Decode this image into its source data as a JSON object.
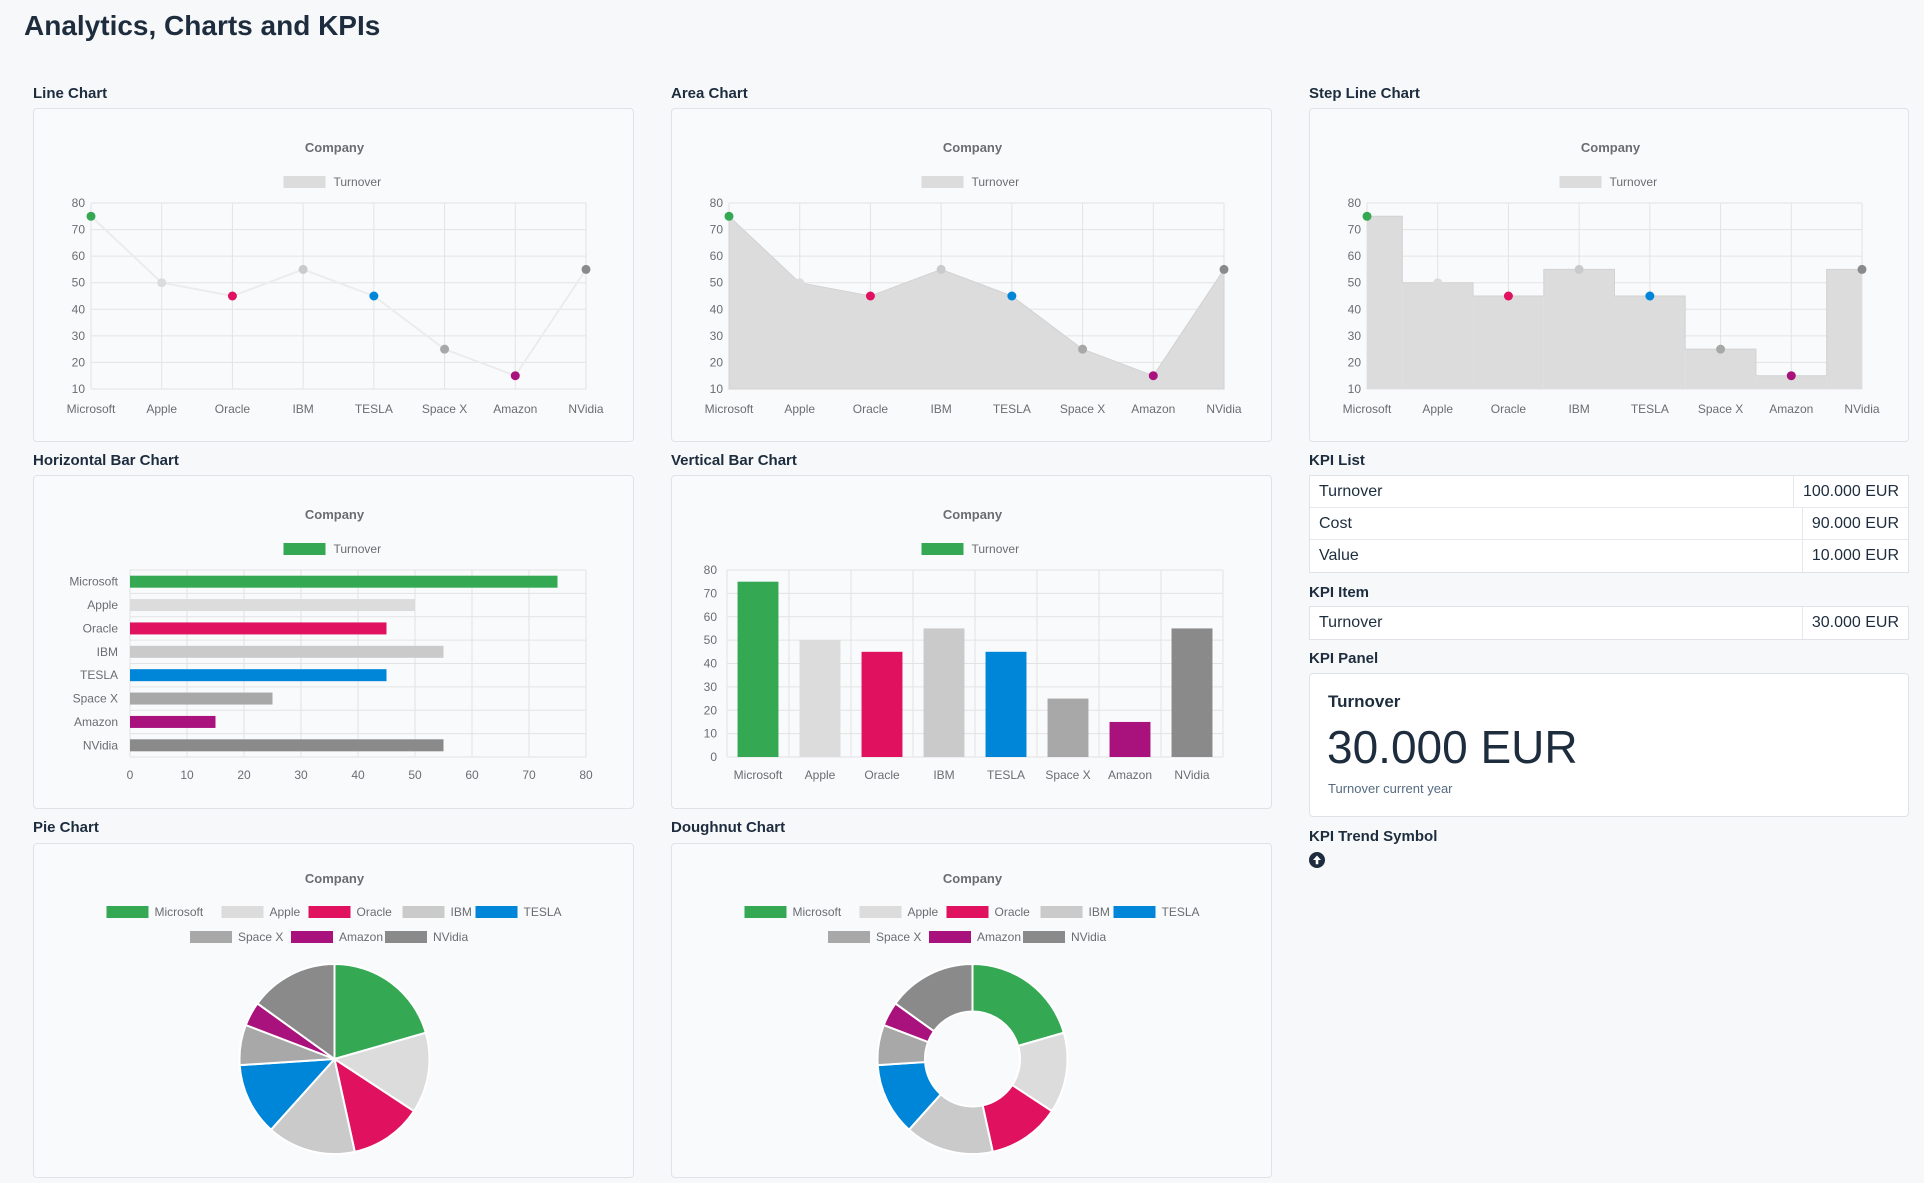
{
  "page": {
    "title": "Analytics, Charts and KPIs"
  },
  "sections": {
    "line": "Line Chart",
    "area": "Area Chart",
    "step": "Step Line Chart",
    "hbar": "Horizontal Bar Chart",
    "vbar": "Vertical Bar Chart",
    "kpi_list": "KPI List",
    "kpi_item": "KPI Item",
    "kpi_panel": "KPI Panel",
    "pie": "Pie Chart",
    "doughnut": "Doughnut Chart",
    "kpi_trend": "KPI Trend Symbol"
  },
  "chart_data": [
    {
      "id": "line",
      "type": "line",
      "title": "Company",
      "categories": [
        "Microsoft",
        "Apple",
        "Oracle",
        "IBM",
        "TESLA",
        "Space X",
        "Amazon",
        "NVidia"
      ],
      "series": [
        {
          "name": "Turnover",
          "values": [
            75,
            50,
            45,
            55,
            45,
            25,
            15,
            55
          ]
        }
      ],
      "ylim": [
        10,
        80
      ],
      "yticks": [
        10,
        20,
        30,
        40,
        50,
        60,
        70,
        80
      ],
      "legend": "top",
      "grid": true
    },
    {
      "id": "area",
      "type": "area",
      "title": "Company",
      "categories": [
        "Microsoft",
        "Apple",
        "Oracle",
        "IBM",
        "TESLA",
        "Space X",
        "Amazon",
        "NVidia"
      ],
      "series": [
        {
          "name": "Turnover",
          "values": [
            75,
            50,
            45,
            55,
            45,
            25,
            15,
            55
          ]
        }
      ],
      "ylim": [
        10,
        80
      ],
      "yticks": [
        10,
        20,
        30,
        40,
        50,
        60,
        70,
        80
      ],
      "legend": "top",
      "grid": true
    },
    {
      "id": "step",
      "type": "line",
      "subtype": "step",
      "title": "Company",
      "categories": [
        "Microsoft",
        "Apple",
        "Oracle",
        "IBM",
        "TESLA",
        "Space X",
        "Amazon",
        "NVidia"
      ],
      "series": [
        {
          "name": "Turnover",
          "values": [
            75,
            50,
            45,
            55,
            45,
            25,
            15,
            55
          ]
        }
      ],
      "ylim": [
        10,
        80
      ],
      "yticks": [
        10,
        20,
        30,
        40,
        50,
        60,
        70,
        80
      ],
      "legend": "top",
      "grid": true
    },
    {
      "id": "hbar",
      "type": "bar",
      "orientation": "horizontal",
      "title": "Company",
      "categories": [
        "Microsoft",
        "Apple",
        "Oracle",
        "IBM",
        "TESLA",
        "Space X",
        "Amazon",
        "NVidia"
      ],
      "series": [
        {
          "name": "Turnover",
          "values": [
            75,
            50,
            45,
            55,
            45,
            25,
            15,
            55
          ]
        }
      ],
      "xlim": [
        0,
        80
      ],
      "xticks": [
        0,
        10,
        20,
        30,
        40,
        50,
        60,
        70,
        80
      ],
      "legend": "top",
      "grid": true
    },
    {
      "id": "vbar",
      "type": "bar",
      "orientation": "vertical",
      "title": "Company",
      "categories": [
        "Microsoft",
        "Apple",
        "Oracle",
        "IBM",
        "TESLA",
        "Space X",
        "Amazon",
        "NVidia"
      ],
      "series": [
        {
          "name": "Turnover",
          "values": [
            75,
            50,
            45,
            55,
            45,
            25,
            15,
            55
          ]
        }
      ],
      "ylim": [
        0,
        80
      ],
      "yticks": [
        0,
        10,
        20,
        30,
        40,
        50,
        60,
        70,
        80
      ],
      "legend": "top",
      "grid": true
    },
    {
      "id": "pie",
      "type": "pie",
      "title": "Company",
      "categories": [
        "Microsoft",
        "Apple",
        "Oracle",
        "IBM",
        "TESLA",
        "Space X",
        "Amazon",
        "NVidia"
      ],
      "values": [
        75,
        50,
        45,
        55,
        45,
        25,
        15,
        55
      ],
      "legend": "top"
    },
    {
      "id": "doughnut",
      "type": "pie",
      "subtype": "doughnut",
      "title": "Company",
      "categories": [
        "Microsoft",
        "Apple",
        "Oracle",
        "IBM",
        "TESLA",
        "Space X",
        "Amazon",
        "NVidia"
      ],
      "values": [
        75,
        50,
        45,
        55,
        45,
        25,
        15,
        55
      ],
      "legend": "top"
    }
  ],
  "colors": {
    "categories": [
      "#35a853",
      "#dcdcdc",
      "#e0115f",
      "#cacaca",
      "#0086d9",
      "#a8a8a8",
      "#a9117c",
      "#8a8a8a"
    ],
    "series_fill": "#dcdcdc",
    "legend_swatch_gray": "#dcdcdc",
    "legend_swatch_green": "#35a853",
    "grid": "#e3e3e3",
    "axis_text": "#6a6d70"
  },
  "kpi_list": [
    {
      "label": "Turnover",
      "value": "100.000 EUR"
    },
    {
      "label": "Cost",
      "value": "90.000 EUR"
    },
    {
      "label": "Value",
      "value": "10.000 EUR"
    }
  ],
  "kpi_item": {
    "label": "Turnover",
    "value": "30.000 EUR"
  },
  "kpi_panel": {
    "title": "Turnover",
    "value": "30.000 EUR",
    "subtitle": "Turnover current year"
  },
  "kpi_trend": {
    "icon": "arrow-up-circle-icon",
    "direction": "up"
  }
}
